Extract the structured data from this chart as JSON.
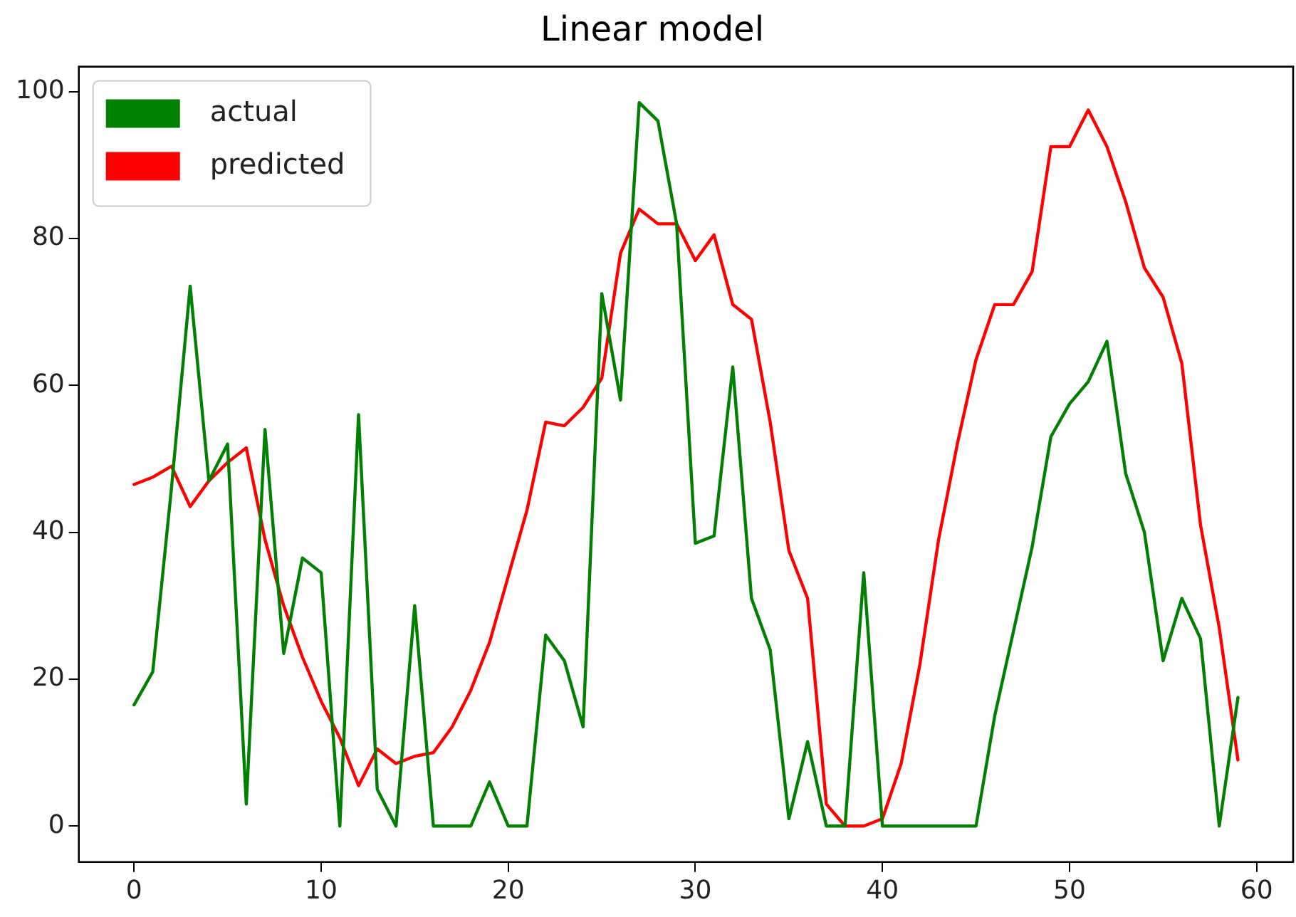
{
  "chart_data": {
    "type": "line",
    "title": "Linear model",
    "x": [
      0,
      1,
      2,
      3,
      4,
      5,
      6,
      7,
      8,
      9,
      10,
      11,
      12,
      13,
      14,
      15,
      16,
      17,
      18,
      19,
      20,
      21,
      22,
      23,
      24,
      25,
      26,
      27,
      28,
      29,
      30,
      31,
      32,
      33,
      34,
      35,
      36,
      37,
      38,
      39,
      40,
      41,
      42,
      43,
      44,
      45,
      46,
      47,
      48,
      49,
      50,
      51,
      52,
      53,
      54,
      55,
      56,
      57,
      58,
      59
    ],
    "series": [
      {
        "name": "actual",
        "color": "#008000",
        "values": [
          16.5,
          21,
          46,
          73.5,
          47,
          52,
          3,
          54,
          23.5,
          36.5,
          34.5,
          0,
          56,
          5,
          0,
          30,
          0,
          0,
          0,
          6,
          0,
          0,
          26,
          22.5,
          13.5,
          72.5,
          58,
          98.5,
          96,
          82,
          38.5,
          39.5,
          62.5,
          31,
          24,
          1,
          11.5,
          0,
          0,
          34.5,
          0,
          0,
          0,
          0,
          0,
          0,
          15,
          26.5,
          38,
          53,
          57.5,
          60.5,
          66,
          48,
          40,
          22.5,
          31,
          25.5,
          0,
          17.5
        ]
      },
      {
        "name": "predicted",
        "color": "#ff0000",
        "values": [
          46.5,
          47.5,
          49,
          43.5,
          47,
          49.5,
          51.5,
          39,
          30,
          23,
          17,
          12,
          5.5,
          10.5,
          8.5,
          9.5,
          10,
          13.5,
          18.5,
          25,
          34,
          43,
          55,
          54.5,
          57,
          61,
          78,
          84,
          82,
          82,
          77,
          80.5,
          71,
          69,
          55,
          37.5,
          31,
          3,
          0,
          0,
          1,
          8.5,
          22,
          39,
          52,
          63.5,
          71,
          71,
          75.5,
          92.5,
          92.5,
          97.5,
          92.5,
          85,
          76,
          72,
          63,
          41,
          27,
          9
        ]
      }
    ],
    "xlim": [
      -2.95,
      61.95
    ],
    "xticks": [
      0,
      10,
      20,
      30,
      40,
      50,
      60
    ],
    "ylim": [
      -4.9,
      103.4
    ],
    "yticks": [
      0,
      20,
      40,
      60,
      80,
      100
    ],
    "grid": false,
    "legend": "top left",
    "marker": "none",
    "line_style": "solid"
  }
}
